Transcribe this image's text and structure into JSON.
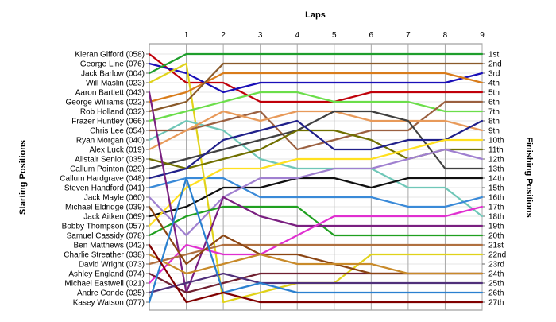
{
  "chart_data": {
    "type": "line",
    "title": "Laps",
    "ylabel_left": "Starting Positions",
    "ylabel_right": "Finishing Positions",
    "x": [
      0,
      1,
      2,
      3,
      4,
      5,
      6,
      7,
      8,
      9
    ],
    "x_tick_labels": [
      "1",
      "2",
      "3",
      "4",
      "5",
      "6",
      "7",
      "8",
      "9"
    ],
    "ylim": [
      1,
      27
    ],
    "grid": true,
    "start_labels": [
      "Kieran Gifford (058)",
      "George Line (076)",
      "Jack Barlow (004)",
      "Will Maslin (023)",
      "Aaron Bartlett (043)",
      "George Williams (022)",
      "Rob Holland (032)",
      "Frazer Huntley (066)",
      "Chris Lee (054)",
      "Ryan Morgan (040)",
      "Alex Luck (019)",
      "Alistair Senior (035)",
      "Callum Pointon (029)",
      "Callum Hardgrave (048)",
      "Steven Handford (041)",
      "Jack Mayle (060)",
      "Michael Eldridge (039)",
      "Jack Aitken (069)",
      "Bobby Thompson (057)",
      "Samuel Cassidy (078)",
      "Ben Matthews (042)",
      "Charlie Streather (038)",
      "David Wright (073)",
      "Ashley England (074)",
      "Michael Eastwell (021)",
      "Andre Conde (025)",
      "Kasey Watson (077)"
    ],
    "finish_labels": [
      "1st",
      "2nd",
      "3rd",
      "4th",
      "5th",
      "6th",
      "7th",
      "8th",
      "9th",
      "10th",
      "11th",
      "12th",
      "13th",
      "14th",
      "15th",
      "16th",
      "17th",
      "18th",
      "19th",
      "20th",
      "21st",
      "22nd",
      "23rd",
      "24th",
      "25th",
      "26th",
      "27th"
    ],
    "series": [
      {
        "color": "#c0000a",
        "positions": [
          1,
          4,
          4,
          6,
          6,
          6,
          5,
          5,
          5,
          5
        ]
      },
      {
        "color": "#1a0fb8",
        "positions": [
          2,
          3,
          5,
          4,
          4,
          4,
          4,
          4,
          4,
          3
        ]
      },
      {
        "color": "#1f9e2c",
        "positions": [
          3,
          1,
          1,
          1,
          1,
          1,
          1,
          1,
          1,
          1
        ]
      },
      {
        "color": "#e0d21a",
        "positions": [
          4,
          2,
          27,
          26,
          25,
          25,
          22,
          22,
          22,
          22
        ]
      },
      {
        "color": "#d97c1a",
        "positions": [
          6,
          5,
          3,
          3,
          3,
          3,
          3,
          3,
          3,
          4
        ]
      },
      {
        "color": "#8a5a2a",
        "positions": [
          7,
          6,
          2,
          2,
          2,
          2,
          2,
          2,
          2,
          2
        ]
      },
      {
        "color": "#6bde4a",
        "positions": [
          8,
          7,
          6,
          5,
          5,
          6,
          6,
          6,
          7,
          7
        ]
      },
      {
        "color": "#6fc7b8",
        "positions": [
          10,
          8,
          9,
          12,
          13,
          13,
          13,
          15,
          15,
          18
        ]
      },
      {
        "color": "#9b6040",
        "positions": [
          9,
          9,
          8,
          7,
          11,
          10,
          9,
          9,
          6,
          6
        ]
      },
      {
        "color": "#e89a5a",
        "positions": [
          11,
          9,
          7,
          8,
          7,
          7,
          8,
          8,
          8,
          9
        ]
      },
      {
        "color": "#404040",
        "positions": [
          13,
          12,
          11,
          10,
          9,
          7,
          7,
          8,
          13,
          13
        ]
      },
      {
        "color": "#707000",
        "positions": [
          12,
          13,
          12,
          11,
          9,
          9,
          10,
          12,
          11,
          11
        ]
      },
      {
        "color": "#20208a",
        "positions": [
          14,
          13,
          10,
          9,
          8,
          11,
          11,
          10,
          10,
          8
        ]
      },
      {
        "color": "#3a8ad8",
        "positions": [
          15,
          14,
          14,
          16,
          16,
          16,
          16,
          17,
          17,
          16
        ]
      },
      {
        "color": "#101010",
        "positions": [
          18,
          17,
          15,
          15,
          14,
          14,
          15,
          14,
          14,
          14
        ]
      },
      {
        "color": "#ffe020",
        "positions": [
          19,
          15,
          13,
          13,
          12,
          12,
          12,
          11,
          10,
          10
        ]
      },
      {
        "color": "#a080d0",
        "positions": [
          16,
          20,
          16,
          14,
          14,
          13,
          13,
          12,
          11,
          12
        ]
      },
      {
        "color": "#20a020",
        "positions": [
          20,
          18,
          17,
          17,
          17,
          20,
          20,
          20,
          20,
          20
        ]
      },
      {
        "color": "#7a2080",
        "positions": [
          5,
          26,
          16,
          18,
          19,
          19,
          19,
          19,
          19,
          19
        ]
      },
      {
        "color": "#e030d0",
        "positions": [
          25,
          21,
          22,
          22,
          20,
          18,
          18,
          18,
          18,
          17
        ]
      },
      {
        "color": "#b07040",
        "positions": [
          23,
          22,
          21,
          21,
          21,
          21,
          21,
          21,
          21,
          21
        ]
      },
      {
        "color": "#702030",
        "positions": [
          24,
          26,
          25,
          24,
          24,
          24,
          24,
          24,
          24,
          24
        ]
      },
      {
        "color": "#8b4513",
        "positions": [
          17,
          23,
          20,
          22,
          22,
          23,
          24,
          24,
          24,
          24
        ]
      },
      {
        "color": "#c88a2a",
        "positions": [
          22,
          24,
          23,
          22,
          23,
          23,
          23,
          24,
          24,
          24
        ]
      },
      {
        "color": "#50307a",
        "positions": [
          26,
          25,
          24,
          25,
          25,
          25,
          25,
          25,
          25,
          25
        ]
      },
      {
        "color": "#2a80d0",
        "positions": [
          27,
          14,
          26,
          25,
          26,
          26,
          26,
          26,
          26,
          26
        ]
      },
      {
        "color": "#800000",
        "positions": [
          21,
          27,
          26,
          27,
          27,
          27,
          27,
          27,
          27,
          27
        ]
      }
    ]
  }
}
